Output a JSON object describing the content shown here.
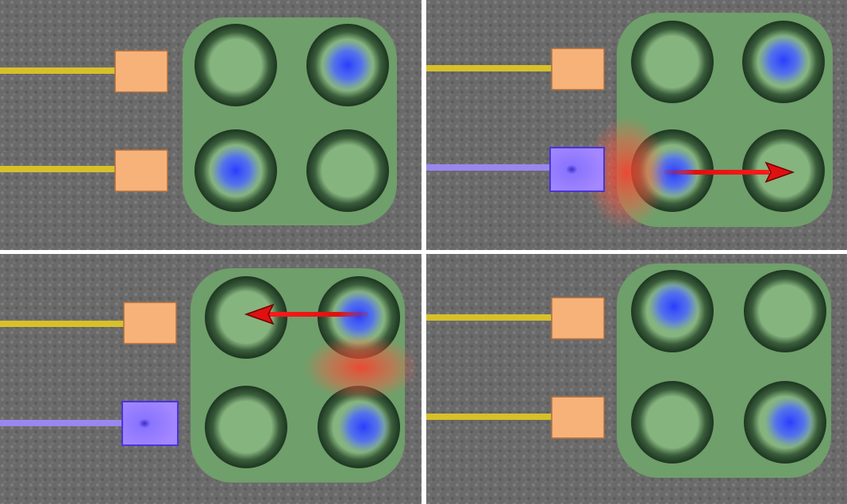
{
  "colors": {
    "substrate": "#6b6b6b",
    "dot_body": "#7fae7a",
    "dot_border": "#1f3a22",
    "electron": "#3f5bff",
    "inactive_gate": "#f7b27a",
    "inactive_lead": "#d7c02a",
    "active_gate": "#9a7dff",
    "active_lead": "#9b87f0",
    "field_glow": "#ff4a3a",
    "tunnel_arrow": "#e01010"
  },
  "panels": [
    {
      "id": "panel-1",
      "electrons": [
        "top-right",
        "bottom-left"
      ],
      "active_gate": null,
      "arrow": null
    },
    {
      "id": "panel-2",
      "electrons": [
        "top-right",
        "bottom-left"
      ],
      "active_gate": "bottom",
      "arrow": {
        "from": "bottom-left",
        "to": "bottom-right"
      }
    },
    {
      "id": "panel-3",
      "electrons": [
        "top-right",
        "bottom-right"
      ],
      "active_gate": "bottom",
      "arrow": {
        "from": "top-right",
        "to": "top-left"
      }
    },
    {
      "id": "panel-4",
      "electrons": [
        "top-left",
        "bottom-right"
      ],
      "active_gate": null,
      "arrow": null
    }
  ]
}
